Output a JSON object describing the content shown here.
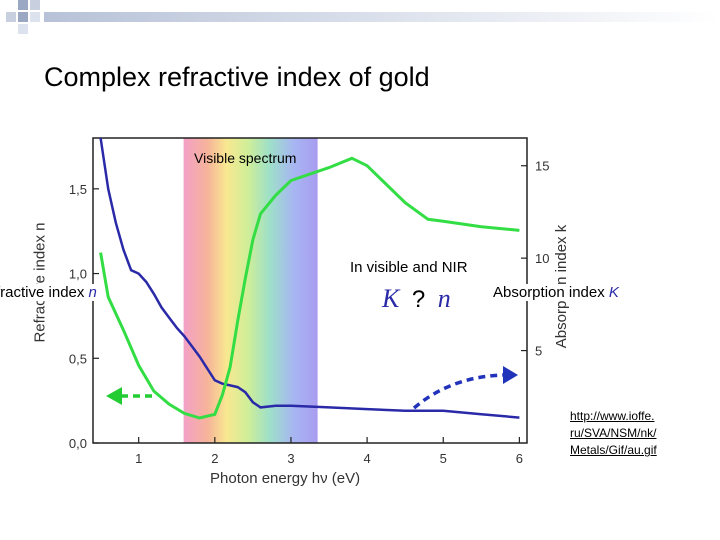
{
  "slide": {
    "title": "Complex refractive index of gold",
    "visible_band_label": "Visible spectrum",
    "region_label": "In visible and NIR",
    "relation_k": "K",
    "relation_q": "?",
    "relation_n": "n",
    "left_label_text": "fractive index",
    "left_label_symbol": "n",
    "right_label_text": "Absorption index",
    "right_label_symbol": "K",
    "source_lines": [
      "http://www.ioffe.",
      "ru/SVA/NSM/nk/",
      "Metals/Gif/au.gif"
    ],
    "colors": {
      "n_curve": "#2a2aa8",
      "k_curve": "#33dd44",
      "arrow_left": "#22cc33",
      "arrow_right": "#2233bb",
      "corner_squares": "#b8c4da"
    },
    "icons": [
      "corner-squares-icon",
      "arrow-left-icon",
      "arrow-right-icon"
    ]
  },
  "chart_data": {
    "type": "line",
    "xlabel": "Photon energy hν (eV)",
    "ylabel_left": "Refractive index n",
    "ylabel_right": "Absorption index k",
    "xlim": [
      0.4,
      6.1
    ],
    "ylim_left": [
      0,
      1.8
    ],
    "ylim_right": [
      0,
      16.5
    ],
    "x_ticks": [
      1,
      2,
      3,
      4,
      5,
      6
    ],
    "y_left_ticks": [
      "0,0",
      "0,5",
      "1,0",
      "1,5"
    ],
    "y_right_ticks": [
      "5",
      "10",
      "15"
    ],
    "visible_band": [
      1.59,
      3.35
    ],
    "series": [
      {
        "name": "n",
        "x": [
          0.5,
          0.6,
          0.7,
          0.8,
          0.9,
          1.0,
          1.1,
          1.2,
          1.3,
          1.4,
          1.5,
          1.6,
          1.7,
          1.8,
          1.9,
          2.0,
          2.1,
          2.2,
          2.3,
          2.4,
          2.5,
          2.6,
          2.8,
          3.0,
          3.5,
          4.0,
          4.5,
          5.0,
          5.5,
          6.0
        ],
        "y": [
          1.85,
          1.5,
          1.3,
          1.14,
          1.02,
          1.0,
          0.95,
          0.88,
          0.8,
          0.74,
          0.68,
          0.63,
          0.57,
          0.51,
          0.44,
          0.37,
          0.35,
          0.34,
          0.33,
          0.3,
          0.24,
          0.21,
          0.22,
          0.22,
          0.21,
          0.2,
          0.19,
          0.19,
          0.17,
          0.15
        ]
      },
      {
        "name": "k",
        "x": [
          0.5,
          0.6,
          0.8,
          1.0,
          1.2,
          1.4,
          1.6,
          1.8,
          2.0,
          2.1,
          2.2,
          2.3,
          2.4,
          2.5,
          2.6,
          2.8,
          3.0,
          3.5,
          3.8,
          4.0,
          4.2,
          4.5,
          4.8,
          5.0,
          5.5,
          6.0
        ],
        "y": [
          10.3,
          7.9,
          6.1,
          4.2,
          2.8,
          2.1,
          1.6,
          1.35,
          1.55,
          2.6,
          4.1,
          6.6,
          8.9,
          11.0,
          12.4,
          13.4,
          14.2,
          14.9,
          15.4,
          15.0,
          14.2,
          13.0,
          12.1,
          12.0,
          11.7,
          11.5
        ]
      }
    ]
  }
}
